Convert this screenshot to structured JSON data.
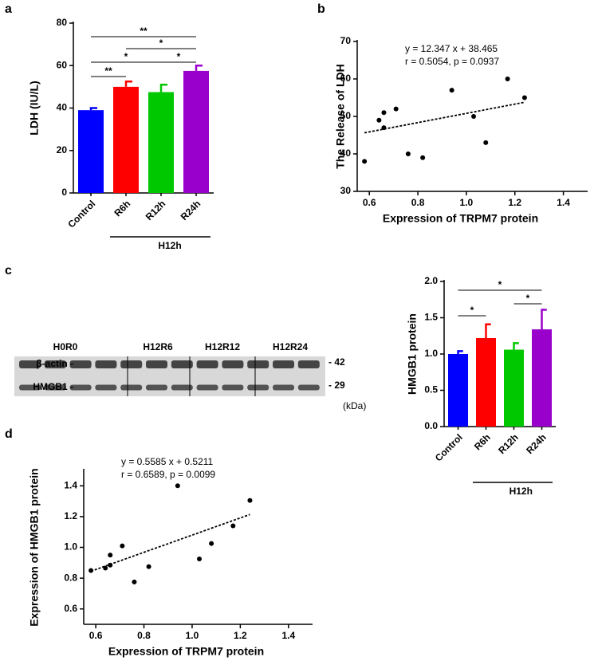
{
  "chart_data": [
    {
      "type": "bar",
      "panel": "a",
      "ylabel": "LDH (IU/L)",
      "categories": [
        "Control",
        "R6h",
        "R12h",
        "R24h"
      ],
      "values": [
        39,
        50,
        47.5,
        57.5
      ],
      "errors": [
        1,
        2.5,
        3.5,
        2.5
      ],
      "colors": [
        "#0000ff",
        "#ff0000",
        "#00c800",
        "#9900cc"
      ],
      "ylim": [
        0,
        80
      ],
      "yticks": [
        0,
        20,
        40,
        60,
        80
      ],
      "group_label": "H12h",
      "significance": [
        {
          "pair": [
            0,
            3
          ],
          "label": "**"
        },
        {
          "pair": [
            1,
            3
          ],
          "label": "*"
        },
        {
          "pair": [
            0,
            2
          ],
          "label": "*"
        },
        {
          "pair": [
            2,
            3
          ],
          "label": "*"
        },
        {
          "pair": [
            0,
            1
          ],
          "label": "**"
        }
      ]
    },
    {
      "type": "scatter",
      "panel": "b",
      "xlabel": "Expression of TRPM7 protein",
      "ylabel": "The Release of LDH",
      "x": [
        0.58,
        0.64,
        0.66,
        0.66,
        0.71,
        0.76,
        0.82,
        0.94,
        1.03,
        1.08,
        1.17,
        1.24
      ],
      "values": [
        38,
        49,
        47,
        51,
        52,
        40,
        39,
        57,
        50,
        43,
        60,
        55
      ],
      "xlim": [
        0.55,
        1.5
      ],
      "xticks": [
        0.6,
        0.8,
        {
          "value": 1,
          "label": "1.0"
        },
        1.2,
        1.4
      ],
      "ylim": [
        30,
        70
      ],
      "yticks": [
        30,
        40,
        50,
        60,
        70
      ],
      "fit": {
        "slope": 12.347,
        "intercept": 38.465,
        "label": "y = 12.347 x + 38.465"
      },
      "stats": "r = 0.5054, p = 0.0937"
    },
    {
      "type": "bar",
      "ylabel": "HMGB1 protein",
      "categories": [
        "Control",
        "R6h",
        "R12h",
        "R24h"
      ],
      "values": [
        1.0,
        1.22,
        1.06,
        1.34
      ],
      "errors": [
        0.04,
        0.19,
        0.09,
        0.27
      ],
      "colors": [
        "#0000ff",
        "#ff0000",
        "#00c800",
        "#9900cc"
      ],
      "ylim": [
        0,
        2
      ],
      "yticks": [
        {
          "value": 0,
          "label": "0.0"
        },
        0.5,
        {
          "value": 1,
          "label": "1.0"
        },
        1.5,
        {
          "value": 2,
          "label": "2.0"
        }
      ],
      "group_label": "H12h",
      "significance": [
        {
          "pair": [
            0,
            3
          ],
          "label": "*"
        },
        {
          "pair": [
            2,
            3
          ],
          "label": "*"
        },
        {
          "pair": [
            0,
            1
          ],
          "label": "*"
        }
      ]
    },
    {
      "type": "scatter",
      "panel": "d",
      "xlabel": "Expression of TRPM7 protein",
      "ylabel": "Expression of HMGB1 protein",
      "x": [
        0.58,
        0.64,
        0.66,
        0.66,
        0.71,
        0.76,
        0.82,
        0.94,
        1.03,
        1.08,
        1.17,
        1.24
      ],
      "values": [
        0.85,
        0.865,
        0.885,
        0.95,
        1.01,
        0.775,
        0.875,
        1.4,
        0.925,
        1.025,
        1.14,
        1.305
      ],
      "xlim": [
        0.55,
        1.5
      ],
      "xticks": [
        0.6,
        0.8,
        {
          "value": 1,
          "label": "1.0"
        },
        1.2,
        1.4
      ],
      "ylim": [
        0.5,
        1.5
      ],
      "yticks": [
        0.6,
        0.8,
        {
          "value": 1,
          "label": "1.0"
        },
        1.2,
        1.4
      ],
      "fit": {
        "slope": 0.5585,
        "intercept": 0.5211,
        "label": "y = 0.5585 x + 0.5211"
      },
      "stats": "r = 0.6589, p = 0.0099"
    }
  ],
  "blot": {
    "panel": "c",
    "lanes": [
      "H0R0",
      "H12R6",
      "H12R12",
      "H12R24"
    ],
    "rows": [
      "β-actin -",
      "HMGB1 -"
    ],
    "markers": [
      "- 42",
      "- 29"
    ],
    "unit": "(kDa)"
  }
}
